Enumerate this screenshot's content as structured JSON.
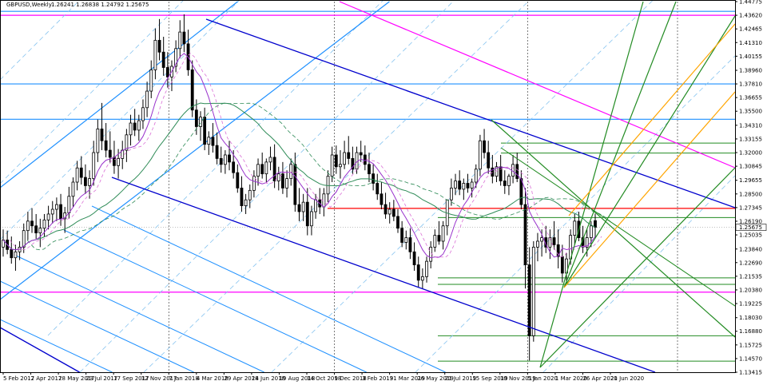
{
  "header": {
    "symbol_label": "GBPUSD,Weekly",
    "quote_values": "1.26241 1.26838 1.24792 1.25675"
  },
  "chart_data": {
    "type": "candlestick",
    "title": "GBPUSD,Weekly",
    "xlabel": "",
    "ylabel": "",
    "ylim": [
      1.13415,
      1.44775
    ],
    "grid": false,
    "current_price": 1.25675,
    "y_ticks": [
      "1.44775",
      "1.43620",
      "1.42465",
      "1.41310",
      "1.40155",
      "1.38960",
      "1.37810",
      "1.36655",
      "1.35500",
      "1.34310",
      "1.33155",
      "1.32000",
      "1.30845",
      "1.29655",
      "1.28500",
      "1.27345",
      "1.26190",
      "1.25035",
      "1.23840",
      "1.22690",
      "1.21535",
      "1.20380",
      "1.19225",
      "1.18030",
      "1.16880",
      "1.15725",
      "1.14570",
      "1.13415"
    ],
    "x_ticks": [
      "5 Feb 2017",
      "2 Apr 2017",
      "28 May 2017",
      "23 Jul 2017",
      "17 Sep 2017",
      "12 Nov 2017",
      "7 Jan 2018",
      "4 Mar 2018",
      "29 Apr 2018",
      "24 Jun 2018",
      "19 Aug 2018",
      "14 Oct 2018",
      "9 Dec 2018",
      "3 Feb 2019",
      "31 Mar 2019",
      "26 May 2019",
      "21 Jul 2019",
      "15 Sep 2019",
      "10 Nov 2019",
      "5 Jan 2020",
      "1 Mar 2020",
      "26 Apr 2020",
      "21 Jun 2020"
    ],
    "period_separators": [
      "7 Jan 2018",
      "9 Dec 2018",
      "5 Jan 2020"
    ],
    "horizontal_levels": [
      {
        "price": 1.4362,
        "color": "#ff00ff"
      },
      {
        "price": 1.2019,
        "color": "#ff00ff"
      },
      {
        "price": 1.4395,
        "color": "#1e90ff"
      },
      {
        "price": 1.3781,
        "color": "#1e90ff"
      },
      {
        "price": 1.3482,
        "color": "#1e90ff"
      },
      {
        "price": 1.2728,
        "color": "#ff0000"
      },
      {
        "price": 1.328,
        "color": "#228b22"
      },
      {
        "price": 1.3196,
        "color": "#228b22"
      },
      {
        "price": 1.265,
        "color": "#228b22"
      },
      {
        "price": 1.214,
        "color": "#228b22"
      },
      {
        "price": 1.2085,
        "color": "#228b22"
      },
      {
        "price": 1.165,
        "color": "#228b22"
      },
      {
        "price": 1.1435,
        "color": "#228b22"
      }
    ],
    "series": [
      {
        "kind": "ohlc",
        "values": [
          [
            1.24,
            1.255,
            1.232,
            1.246
          ],
          [
            1.246,
            1.254,
            1.234,
            1.238
          ],
          [
            1.238,
            1.249,
            1.226,
            1.231
          ],
          [
            1.231,
            1.242,
            1.22,
            1.236
          ],
          [
            1.236,
            1.245,
            1.229,
            1.24
          ],
          [
            1.24,
            1.26,
            1.235,
            1.254
          ],
          [
            1.254,
            1.27,
            1.246,
            1.262
          ],
          [
            1.262,
            1.273,
            1.252,
            1.258
          ],
          [
            1.258,
            1.268,
            1.247,
            1.252
          ],
          [
            1.252,
            1.264,
            1.24,
            1.256
          ],
          [
            1.256,
            1.268,
            1.249,
            1.263
          ],
          [
            1.263,
            1.275,
            1.255,
            1.268
          ],
          [
            1.268,
            1.279,
            1.26,
            1.272
          ],
          [
            1.272,
            1.282,
            1.262,
            1.276
          ],
          [
            1.276,
            1.285,
            1.258,
            1.264
          ],
          [
            1.264,
            1.274,
            1.252,
            1.269
          ],
          [
            1.269,
            1.291,
            1.264,
            1.283
          ],
          [
            1.283,
            1.299,
            1.274,
            1.295
          ],
          [
            1.295,
            1.313,
            1.288,
            1.307
          ],
          [
            1.307,
            1.317,
            1.293,
            1.299
          ],
          [
            1.299,
            1.31,
            1.285,
            1.292
          ],
          [
            1.292,
            1.305,
            1.281,
            1.298
          ],
          [
            1.298,
            1.33,
            1.292,
            1.32
          ],
          [
            1.32,
            1.348,
            1.312,
            1.34
          ],
          [
            1.34,
            1.362,
            1.322,
            1.33
          ],
          [
            1.33,
            1.345,
            1.316,
            1.322
          ],
          [
            1.322,
            1.338,
            1.311,
            1.316
          ],
          [
            1.316,
            1.33,
            1.302,
            1.309
          ],
          [
            1.309,
            1.323,
            1.298,
            1.315
          ],
          [
            1.315,
            1.33,
            1.306,
            1.322
          ],
          [
            1.322,
            1.34,
            1.312,
            1.335
          ],
          [
            1.335,
            1.352,
            1.326,
            1.345
          ],
          [
            1.345,
            1.357,
            1.334,
            1.339
          ],
          [
            1.339,
            1.352,
            1.33,
            1.347
          ],
          [
            1.347,
            1.365,
            1.34,
            1.358
          ],
          [
            1.358,
            1.38,
            1.35,
            1.372
          ],
          [
            1.372,
            1.398,
            1.366,
            1.39
          ],
          [
            1.39,
            1.425,
            1.382,
            1.415
          ],
          [
            1.415,
            1.433,
            1.398,
            1.405
          ],
          [
            1.405,
            1.418,
            1.385,
            1.392
          ],
          [
            1.392,
            1.405,
            1.375,
            1.384
          ],
          [
            1.384,
            1.398,
            1.372,
            1.393
          ],
          [
            1.393,
            1.415,
            1.388,
            1.408
          ],
          [
            1.408,
            1.432,
            1.4,
            1.422
          ],
          [
            1.422,
            1.437,
            1.405,
            1.412
          ],
          [
            1.412,
            1.424,
            1.385,
            1.39
          ],
          [
            1.39,
            1.398,
            1.35,
            1.356
          ],
          [
            1.356,
            1.365,
            1.335,
            1.342
          ],
          [
            1.342,
            1.355,
            1.33,
            1.35
          ],
          [
            1.35,
            1.358,
            1.322,
            1.327
          ],
          [
            1.327,
            1.338,
            1.318,
            1.333
          ],
          [
            1.333,
            1.345,
            1.32,
            1.326
          ],
          [
            1.326,
            1.337,
            1.31,
            1.315
          ],
          [
            1.315,
            1.325,
            1.303,
            1.31
          ],
          [
            1.31,
            1.322,
            1.302,
            1.318
          ],
          [
            1.318,
            1.33,
            1.305,
            1.312
          ],
          [
            1.312,
            1.322,
            1.298,
            1.303
          ],
          [
            1.303,
            1.31,
            1.286,
            1.29
          ],
          [
            1.29,
            1.3,
            1.27,
            1.275
          ],
          [
            1.275,
            1.285,
            1.268,
            1.28
          ],
          [
            1.28,
            1.293,
            1.273,
            1.288
          ],
          [
            1.288,
            1.305,
            1.282,
            1.3
          ],
          [
            1.3,
            1.315,
            1.292,
            1.31
          ],
          [
            1.31,
            1.32,
            1.298,
            1.302
          ],
          [
            1.302,
            1.315,
            1.295,
            1.312
          ],
          [
            1.312,
            1.325,
            1.305,
            1.316
          ],
          [
            1.316,
            1.327,
            1.29,
            1.296
          ],
          [
            1.296,
            1.308,
            1.288,
            1.302
          ],
          [
            1.302,
            1.312,
            1.285,
            1.29
          ],
          [
            1.29,
            1.305,
            1.282,
            1.298
          ],
          [
            1.298,
            1.315,
            1.292,
            1.31
          ],
          [
            1.31,
            1.32,
            1.27,
            1.276
          ],
          [
            1.276,
            1.29,
            1.262,
            1.27
          ],
          [
            1.27,
            1.285,
            1.262,
            1.278
          ],
          [
            1.278,
            1.29,
            1.25,
            1.258
          ],
          [
            1.258,
            1.275,
            1.25,
            1.27
          ],
          [
            1.27,
            1.285,
            1.264,
            1.28
          ],
          [
            1.28,
            1.29,
            1.268,
            1.274
          ],
          [
            1.274,
            1.29,
            1.266,
            1.285
          ],
          [
            1.285,
            1.305,
            1.278,
            1.3
          ],
          [
            1.3,
            1.325,
            1.295,
            1.318
          ],
          [
            1.318,
            1.326,
            1.302,
            1.308
          ],
          [
            1.308,
            1.322,
            1.298,
            1.31
          ],
          [
            1.31,
            1.33,
            1.306,
            1.32
          ],
          [
            1.32,
            1.334,
            1.31,
            1.315
          ],
          [
            1.315,
            1.325,
            1.302,
            1.306
          ],
          [
            1.306,
            1.325,
            1.302,
            1.32
          ],
          [
            1.32,
            1.33,
            1.312,
            1.318
          ],
          [
            1.318,
            1.326,
            1.305,
            1.31
          ],
          [
            1.31,
            1.32,
            1.295,
            1.302
          ],
          [
            1.302,
            1.31,
            1.288,
            1.294
          ],
          [
            1.294,
            1.302,
            1.28,
            1.285
          ],
          [
            1.285,
            1.295,
            1.272,
            1.276
          ],
          [
            1.276,
            1.286,
            1.264,
            1.268
          ],
          [
            1.268,
            1.278,
            1.26,
            1.272
          ],
          [
            1.272,
            1.28,
            1.262,
            1.266
          ],
          [
            1.266,
            1.272,
            1.252,
            1.256
          ],
          [
            1.256,
            1.262,
            1.24,
            1.244
          ],
          [
            1.244,
            1.254,
            1.238,
            1.248
          ],
          [
            1.248,
            1.256,
            1.23,
            1.236
          ],
          [
            1.236,
            1.244,
            1.22,
            1.225
          ],
          [
            1.225,
            1.232,
            1.206,
            1.212
          ],
          [
            1.212,
            1.222,
            1.205,
            1.215
          ],
          [
            1.215,
            1.232,
            1.21,
            1.228
          ],
          [
            1.228,
            1.245,
            1.222,
            1.24
          ],
          [
            1.24,
            1.255,
            1.236,
            1.25
          ],
          [
            1.25,
            1.262,
            1.242,
            1.245
          ],
          [
            1.245,
            1.262,
            1.238,
            1.258
          ],
          [
            1.258,
            1.275,
            1.25,
            1.28
          ],
          [
            1.28,
            1.298,
            1.275,
            1.29
          ],
          [
            1.29,
            1.302,
            1.284,
            1.296
          ],
          [
            1.296,
            1.305,
            1.284,
            1.289
          ],
          [
            1.289,
            1.298,
            1.28,
            1.294
          ],
          [
            1.294,
            1.302,
            1.286,
            1.29
          ],
          [
            1.29,
            1.298,
            1.282,
            1.295
          ],
          [
            1.295,
            1.31,
            1.29,
            1.306
          ],
          [
            1.306,
            1.335,
            1.3,
            1.33
          ],
          [
            1.33,
            1.34,
            1.315,
            1.32
          ],
          [
            1.32,
            1.33,
            1.302,
            1.307
          ],
          [
            1.307,
            1.318,
            1.294,
            1.3
          ],
          [
            1.3,
            1.312,
            1.295,
            1.308
          ],
          [
            1.308,
            1.318,
            1.292,
            1.296
          ],
          [
            1.296,
            1.305,
            1.285,
            1.292
          ],
          [
            1.292,
            1.302,
            1.284,
            1.3
          ],
          [
            1.3,
            1.318,
            1.294,
            1.31
          ],
          [
            1.31,
            1.32,
            1.295,
            1.298
          ],
          [
            1.298,
            1.305,
            1.272,
            1.276
          ],
          [
            1.276,
            1.29,
            1.205,
            1.225
          ],
          [
            1.225,
            1.24,
            1.144,
            1.165
          ],
          [
            1.165,
            1.245,
            1.16,
            1.24
          ],
          [
            1.24,
            1.252,
            1.228,
            1.245
          ],
          [
            1.245,
            1.255,
            1.232,
            1.248
          ],
          [
            1.248,
            1.258,
            1.235,
            1.24
          ],
          [
            1.24,
            1.255,
            1.23,
            1.248
          ],
          [
            1.248,
            1.262,
            1.238,
            1.242
          ],
          [
            1.242,
            1.255,
            1.222,
            1.232
          ],
          [
            1.232,
            1.242,
            1.21,
            1.218
          ],
          [
            1.218,
            1.235,
            1.21,
            1.23
          ],
          [
            1.23,
            1.255,
            1.225,
            1.25
          ],
          [
            1.25,
            1.268,
            1.242,
            1.262
          ],
          [
            1.262,
            1.27,
            1.245,
            1.248
          ],
          [
            1.248,
            1.258,
            1.235,
            1.24
          ],
          [
            1.24,
            1.255,
            1.232,
            1.248
          ],
          [
            1.248,
            1.262,
            1.24,
            1.258
          ],
          [
            1.2624,
            1.2684,
            1.2479,
            1.2568
          ]
        ]
      }
    ]
  }
}
